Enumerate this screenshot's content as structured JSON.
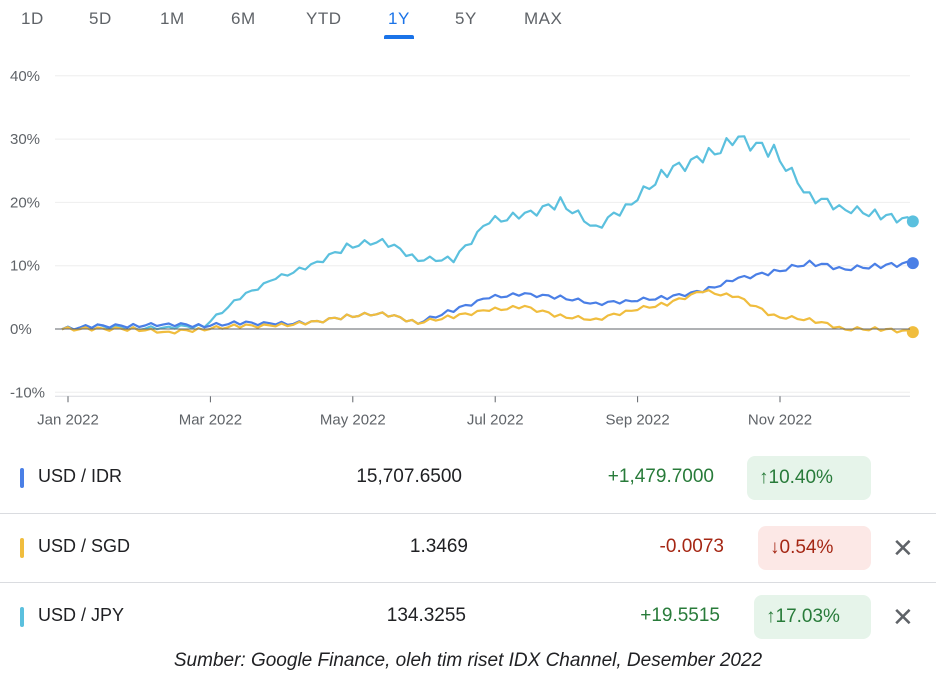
{
  "tabs": [
    {
      "label": "1D"
    },
    {
      "label": "5D"
    },
    {
      "label": "1M"
    },
    {
      "label": "6M"
    },
    {
      "label": "YTD"
    },
    {
      "label": "1Y",
      "active": true
    },
    {
      "label": "5Y"
    },
    {
      "label": "MAX"
    }
  ],
  "chart_data": {
    "type": "line",
    "ylabel": "",
    "xlabel": "",
    "ylim": [
      -10,
      40
    ],
    "yticks": [
      "40%",
      "30%",
      "20%",
      "10%",
      "0%",
      "-10%"
    ],
    "ytick_values": [
      40,
      30,
      20,
      10,
      0,
      -10
    ],
    "xticks": [
      "Jan 2022",
      "Mar 2022",
      "May 2022",
      "Jul 2022",
      "Sep 2022",
      "Nov 2022"
    ],
    "xtick_values": [
      0,
      2,
      4,
      6,
      8,
      10
    ],
    "x_unit": "months since Jan 2022",
    "x": [
      0,
      0.5,
      1,
      1.5,
      2,
      2.5,
      3,
      3.5,
      4,
      4.5,
      5,
      5.5,
      6,
      6.5,
      7,
      7.5,
      8,
      8.5,
      9,
      9.5,
      10,
      10.5,
      11,
      11.5,
      11.95
    ],
    "series": [
      {
        "name": "USD / JPY",
        "color": "#5bc0de",
        "values": [
          0,
          0.5,
          0,
          0.3,
          0.5,
          5,
          8,
          10,
          13,
          14,
          11,
          11,
          17,
          18,
          20,
          16,
          20,
          25,
          27,
          30,
          28,
          21,
          19,
          18,
          17
        ]
      },
      {
        "name": "USD / IDR",
        "color": "#4a7fe6",
        "values": [
          0,
          0.5,
          0.5,
          0.8,
          0.5,
          1,
          0.8,
          1,
          2,
          2.5,
          1,
          3,
          5,
          5.5,
          5,
          4,
          4.5,
          5,
          6,
          8,
          9,
          10.5,
          9.5,
          10,
          10.4
        ]
      },
      {
        "name": "USD / SGD",
        "color": "#f0bd3e",
        "values": [
          0,
          0,
          0,
          -0.5,
          0,
          0.5,
          0.5,
          1,
          2,
          2.5,
          1,
          2,
          3,
          3.5,
          2,
          1.5,
          3,
          4,
          6,
          5,
          2,
          1.5,
          0,
          0,
          -0.5
        ]
      }
    ]
  },
  "rows": [
    {
      "pair": "USD / IDR",
      "color": "#4a7fe6",
      "price": "15,707.6500",
      "change": "+1,479.7000",
      "percent": "10.40%",
      "arrow": "↑",
      "dir": "up"
    },
    {
      "pair": "USD / SGD",
      "color": "#f0bd3e",
      "price": "1.3469",
      "change": "-0.0073",
      "percent": "0.54%",
      "arrow": "↓",
      "dir": "down",
      "close": "✕"
    },
    {
      "pair": "USD / JPY",
      "color": "#5bc0de",
      "price": "134.3255",
      "change": "+19.5515",
      "percent": "17.03%",
      "arrow": "↑",
      "dir": "up",
      "close": "✕"
    }
  ],
  "caption": "Sumber: Google Finance, oleh tim riset IDX Channel, Desember 2022"
}
